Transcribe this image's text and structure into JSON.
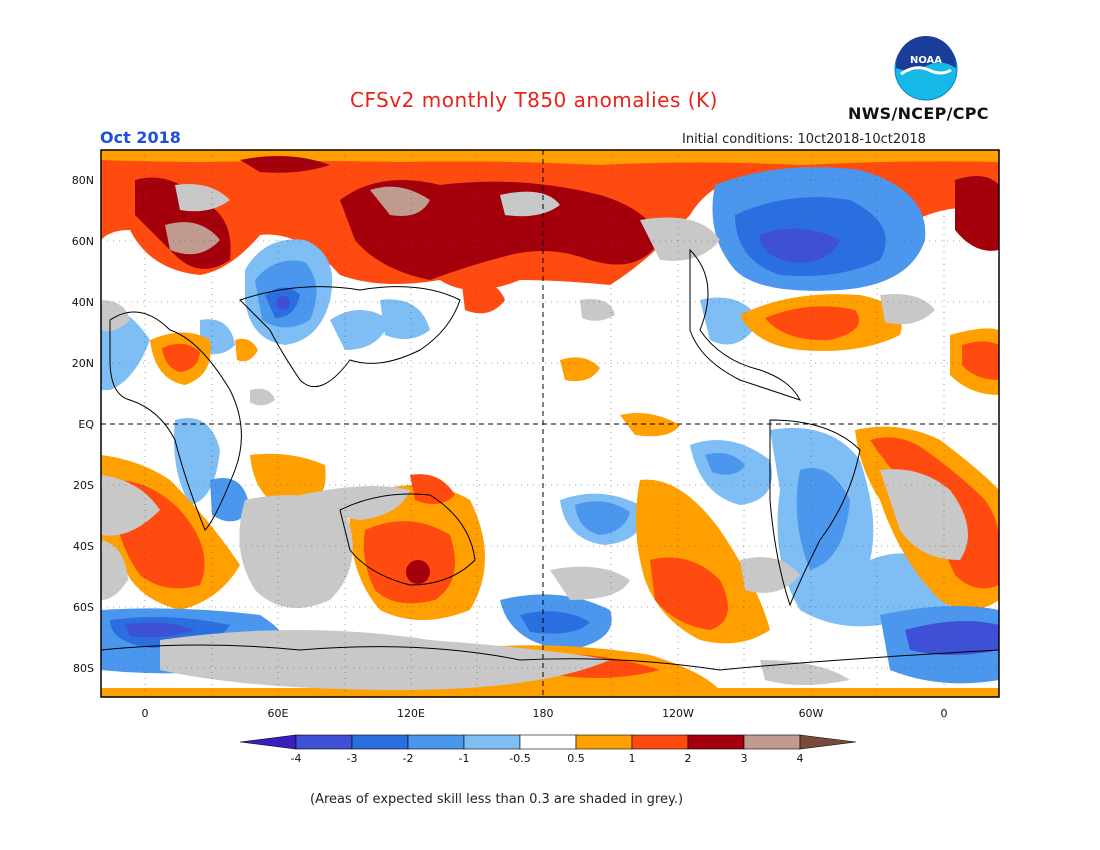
{
  "header": {
    "title": "CFSv2 monthly T850 anomalies (K)",
    "month": "Oct 2018",
    "initial_conditions": "Initial conditions: 10ct2018-10ct2018",
    "agency": "NWS/NCEP/CPC",
    "logo_text": "NOAA"
  },
  "map": {
    "lat_labels": [
      "80N",
      "60N",
      "40N",
      "20N",
      "EQ",
      "20S",
      "40S",
      "60S",
      "80S"
    ],
    "lon_labels": [
      "0",
      "60E",
      "120E",
      "180",
      "120W",
      "60W",
      "0"
    ]
  },
  "colorbar": {
    "tick_labels": [
      "-4",
      "-3",
      "-2",
      "-1",
      "-0.5",
      "0.5",
      "1",
      "2",
      "3",
      "4"
    ],
    "colors": [
      "#3a1fbf",
      "#3e50d6",
      "#2a6ee0",
      "#4b97ee",
      "#7fbdf5",
      "#ffffff",
      "#ff9f00",
      "#ff4a10",
      "#a3000c",
      "#c19a90",
      "#7a4a3a"
    ]
  },
  "caption": "(Areas of expected skill less than 0.3 are shaded in grey.)"
}
